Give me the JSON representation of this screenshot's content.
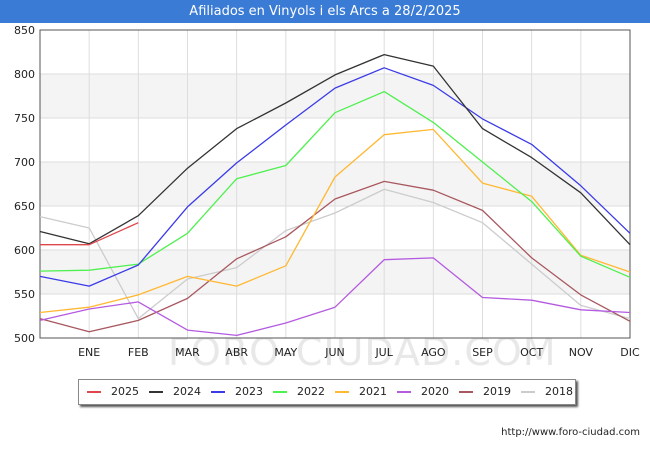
{
  "header": {
    "title": "Afiliados en Vinyols i els Arcs a 28/2/2025"
  },
  "footer": {
    "source": "http://www.foro-ciudad.com"
  },
  "watermark": "FORO-CIUDAD.COM",
  "chart_data": {
    "type": "line",
    "title": "Afiliados en Vinyols i els Arcs a 28/2/2025",
    "xlabel": "",
    "ylabel": "",
    "categories": [
      "",
      "ENE",
      "FEB",
      "MAR",
      "ABR",
      "MAY",
      "JUN",
      "JUL",
      "AGO",
      "SEP",
      "OCT",
      "NOV",
      "DIC"
    ],
    "ylim": [
      500,
      850
    ],
    "yticks": [
      500,
      550,
      600,
      650,
      700,
      750,
      800,
      850
    ],
    "grid": true,
    "legend_position": "bottom",
    "series": [
      {
        "name": "2025",
        "color": "#e0474c",
        "values": [
          606,
          606,
          631,
          null,
          null,
          null,
          null,
          null,
          null,
          null,
          null,
          null,
          null
        ]
      },
      {
        "name": "2024",
        "color": "#333333",
        "values": [
          621,
          607,
          639,
          693,
          738,
          767,
          799,
          822,
          809,
          738,
          705,
          665,
          606
        ]
      },
      {
        "name": "2023",
        "color": "#3b3be8",
        "values": [
          570,
          559,
          583,
          649,
          699,
          742,
          784,
          807,
          787,
          749,
          720,
          673,
          619
        ]
      },
      {
        "name": "2022",
        "color": "#4ef04e",
        "values": [
          576,
          577,
          584,
          619,
          681,
          696,
          756,
          780,
          745,
          700,
          655,
          593,
          569
        ]
      },
      {
        "name": "2021",
        "color": "#ffb833",
        "values": [
          529,
          535,
          549,
          570,
          559,
          582,
          683,
          731,
          737,
          676,
          661,
          594,
          575
        ]
      },
      {
        "name": "2020",
        "color": "#b45be0",
        "values": [
          520,
          533,
          541,
          509,
          503,
          517,
          535,
          589,
          591,
          546,
          543,
          532,
          529
        ]
      },
      {
        "name": "2019",
        "color": "#a8585f",
        "values": [
          522,
          507,
          520,
          545,
          590,
          615,
          658,
          678,
          668,
          645,
          591,
          549,
          519
        ]
      },
      {
        "name": "2018",
        "color": "#cccccc",
        "values": [
          638,
          625,
          522,
          567,
          580,
          622,
          642,
          669,
          654,
          631,
          584,
          537,
          522
        ]
      }
    ]
  }
}
